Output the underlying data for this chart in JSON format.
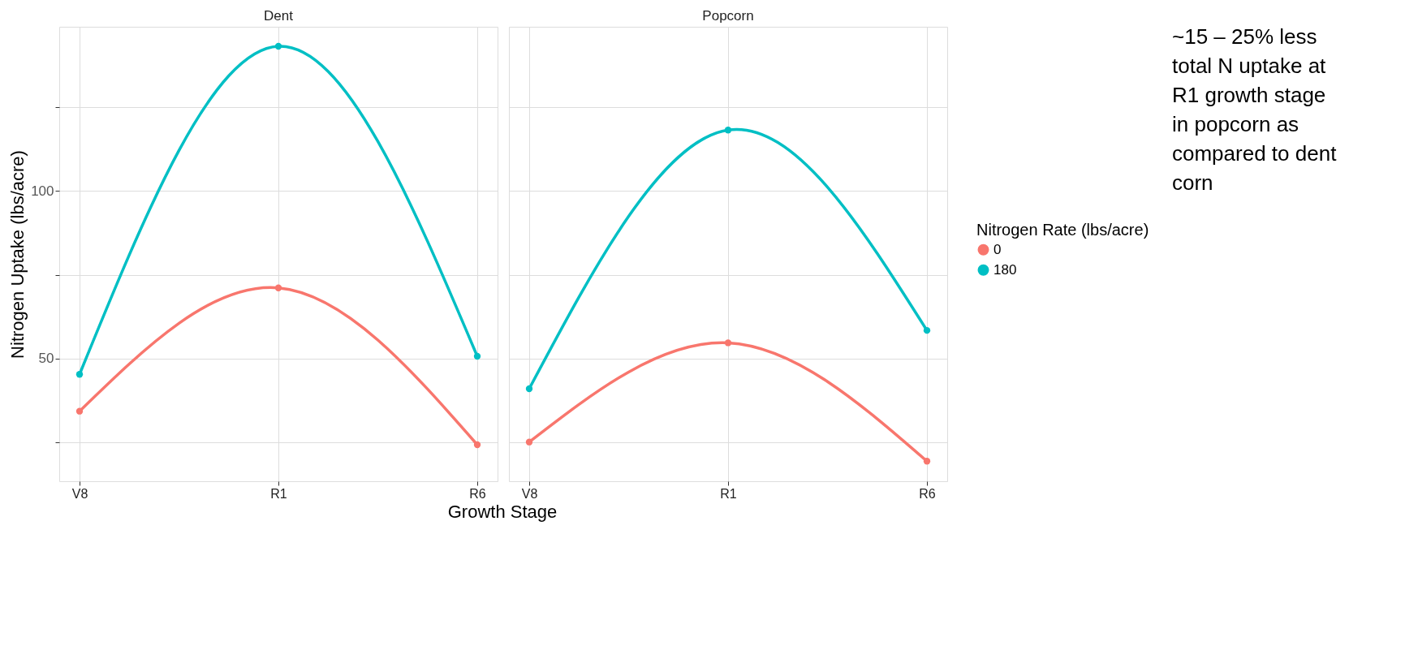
{
  "chart_data": [
    {
      "type": "line",
      "title": "Dent",
      "xlabel": "Growth Stage",
      "ylabel": "Nitrogen Uptake (lbs/acre)",
      "categories": [
        "V8",
        "R1",
        "R6"
      ],
      "series": [
        {
          "color": "#f8766d",
          "values": [
            34.3,
            71.1,
            24.3
          ]
        },
        {
          "color": "#00bfc4",
          "values": [
            45.3,
            143.2,
            50.7
          ]
        }
      ],
      "ylim": [
        13.4,
        149
      ],
      "yticks": [
        {
          "value": 25,
          "label": null
        },
        50,
        {
          "value": 75,
          "label": null
        },
        100,
        {
          "value": 125,
          "label": null
        }
      ],
      "grid": true,
      "marker": "circle",
      "legend": false
    },
    {
      "type": "line",
      "title": "Popcorn",
      "legend_title": "Nitrogen Rate (lbs/acre)",
      "categories": [
        "V8",
        "R1",
        "R6"
      ],
      "series": [
        {
          "name": "0",
          "color": "#f8766d",
          "values": [
            25.1,
            54.7,
            19.4
          ]
        },
        {
          "name": "180",
          "color": "#00bfc4",
          "values": [
            41.0,
            118.2,
            58.4
          ]
        }
      ],
      "ylim": [
        13.4,
        149
      ],
      "yticks": [
        {
          "value": 25,
          "label": null
        },
        50,
        {
          "value": 75,
          "label": null
        },
        100,
        {
          "value": 125,
          "label": null
        }
      ],
      "tick_labels": "x",
      "grid": true,
      "marker": "circle",
      "legend": "right",
      "annotations": [
        "~15 – 25% less total N uptake at R1 growth stage in popcorn as compared to dent corn"
      ]
    }
  ]
}
